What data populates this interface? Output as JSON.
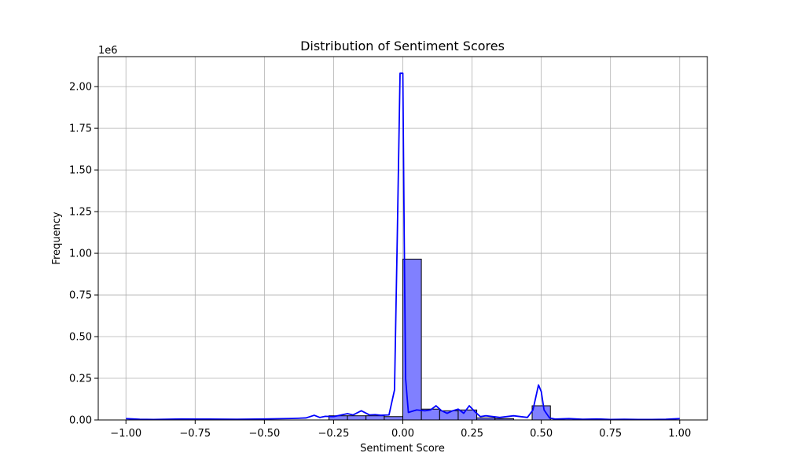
{
  "chart_data": {
    "type": "histogram",
    "title": "Distribution of Sentiment Scores",
    "xlabel": "Sentiment Score",
    "ylabel": "Frequency",
    "y_offset_label": "1e6",
    "xlim": [
      -1.1,
      1.1
    ],
    "ylim": [
      0,
      2.18
    ],
    "x_ticks": [
      -1.0,
      -0.75,
      -0.5,
      -0.25,
      0.0,
      0.25,
      0.5,
      0.75,
      1.0
    ],
    "x_tick_labels": [
      "−1.00",
      "−0.75",
      "−0.50",
      "−0.25",
      "0.00",
      "0.25",
      "0.50",
      "0.75",
      "1.00"
    ],
    "y_ticks": [
      0,
      0.25,
      0.5,
      0.75,
      1.0,
      1.25,
      1.5,
      1.75,
      2.0
    ],
    "y_tick_labels": [
      "0.00",
      "0.25",
      "0.50",
      "0.75",
      "1.00",
      "1.25",
      "1.50",
      "1.75",
      "2.00"
    ],
    "grid": true,
    "bar_color": "#8080ff",
    "bar_edge_color": "#000000",
    "kde_color": "#0000ff",
    "units_y": "millions",
    "bins": [
      {
        "x0": -0.267,
        "x1": -0.2,
        "value": 0.025
      },
      {
        "x0": -0.2,
        "x1": -0.133,
        "value": 0.025
      },
      {
        "x0": -0.133,
        "x1": -0.067,
        "value": 0.025
      },
      {
        "x0": -0.067,
        "x1": 0.0,
        "value": 0.02
      },
      {
        "x0": 0.0,
        "x1": 0.067,
        "value": 0.965
      },
      {
        "x0": 0.067,
        "x1": 0.133,
        "value": 0.065
      },
      {
        "x0": 0.133,
        "x1": 0.2,
        "value": 0.055
      },
      {
        "x0": 0.2,
        "x1": 0.267,
        "value": 0.06
      },
      {
        "x0": 0.267,
        "x1": 0.333,
        "value": 0.012
      },
      {
        "x0": 0.333,
        "x1": 0.4,
        "value": 0.008
      },
      {
        "x0": 0.467,
        "x1": 0.533,
        "value": 0.085
      }
    ],
    "kde": {
      "x": [
        -1.0,
        -0.95,
        -0.9,
        -0.8,
        -0.7,
        -0.6,
        -0.5,
        -0.4,
        -0.35,
        -0.32,
        -0.3,
        -0.28,
        -0.25,
        -0.2,
        -0.18,
        -0.15,
        -0.12,
        -0.1,
        -0.08,
        -0.05,
        -0.03,
        -0.02,
        -0.01,
        -0.005,
        0.0,
        0.005,
        0.01,
        0.02,
        0.03,
        0.05,
        0.08,
        0.1,
        0.12,
        0.14,
        0.16,
        0.18,
        0.2,
        0.22,
        0.24,
        0.26,
        0.28,
        0.3,
        0.35,
        0.4,
        0.45,
        0.47,
        0.49,
        0.5,
        0.51,
        0.53,
        0.55,
        0.6,
        0.65,
        0.7,
        0.75,
        0.8,
        0.85,
        0.9,
        0.95,
        1.0
      ],
      "y": [
        0.008,
        0.004,
        0.003,
        0.006,
        0.005,
        0.004,
        0.006,
        0.009,
        0.012,
        0.028,
        0.015,
        0.022,
        0.02,
        0.038,
        0.03,
        0.055,
        0.03,
        0.032,
        0.028,
        0.03,
        0.18,
        1.1,
        2.08,
        2.08,
        2.08,
        1.1,
        0.25,
        0.045,
        0.05,
        0.06,
        0.055,
        0.06,
        0.085,
        0.055,
        0.04,
        0.055,
        0.065,
        0.04,
        0.085,
        0.05,
        0.02,
        0.025,
        0.015,
        0.025,
        0.015,
        0.06,
        0.21,
        0.17,
        0.06,
        0.012,
        0.005,
        0.008,
        0.004,
        0.006,
        0.003,
        0.004,
        0.003,
        0.003,
        0.004,
        0.008
      ]
    }
  }
}
